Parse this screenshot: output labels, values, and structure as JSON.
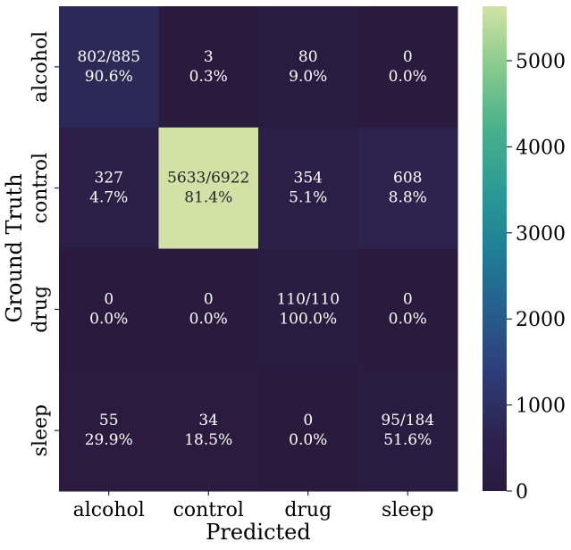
{
  "chart_data": {
    "type": "heatmap",
    "title": "",
    "xlabel": "Predicted",
    "ylabel": "Ground Truth",
    "x_categories": [
      "alcohol",
      "control",
      "drug",
      "sleep"
    ],
    "y_categories": [
      "alcohol",
      "control",
      "drug",
      "sleep"
    ],
    "values": [
      [
        802,
        3,
        80,
        0
      ],
      [
        327,
        5633,
        354,
        608
      ],
      [
        0,
        0,
        110,
        0
      ],
      [
        55,
        34,
        0,
        95
      ]
    ],
    "cell_labels": [
      [
        [
          "802/885",
          "90.6%"
        ],
        [
          "3",
          "0.3%"
        ],
        [
          "80",
          "9.0%"
        ],
        [
          "0",
          "0.0%"
        ]
      ],
      [
        [
          "327",
          "4.7%"
        ],
        [
          "5633/6922",
          "81.4%"
        ],
        [
          "354",
          "5.1%"
        ],
        [
          "608",
          "8.8%"
        ]
      ],
      [
        [
          "0",
          "0.0%"
        ],
        [
          "0",
          "0.0%"
        ],
        [
          "110/110",
          "100.0%"
        ],
        [
          "0",
          "0.0%"
        ]
      ],
      [
        [
          "55",
          "29.9%"
        ],
        [
          "34",
          "18.5%"
        ],
        [
          "0",
          "0.0%"
        ],
        [
          "95/184",
          "51.6%"
        ]
      ]
    ],
    "colormap": "crest_r",
    "colorbar": {
      "range": [
        0,
        5633
      ],
      "ticks": [
        0,
        1000,
        2000,
        3000,
        4000,
        5000
      ],
      "tick_labels": [
        "0",
        "1000",
        "2000",
        "3000",
        "4000",
        "5000"
      ]
    },
    "grid": false
  }
}
